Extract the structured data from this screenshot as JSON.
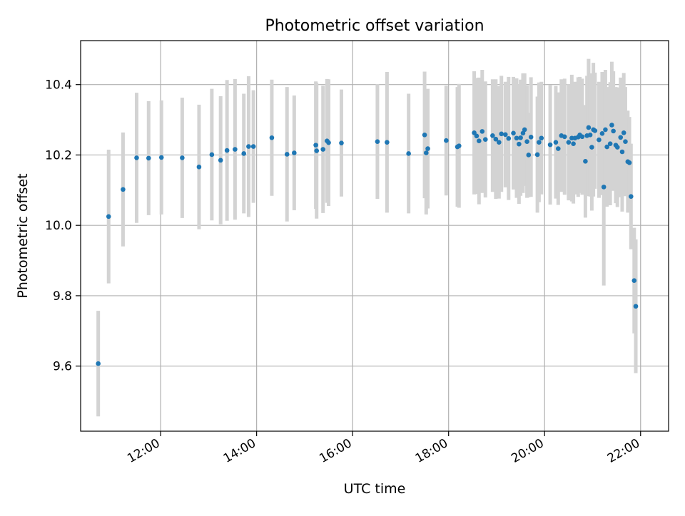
{
  "chart_data": {
    "type": "scatter",
    "title": "Photometric offset variation",
    "xlabel": "UTC time",
    "ylabel": "Photometric offset",
    "x_axis": {
      "kind": "time",
      "range": [
        "10:20",
        "22:35"
      ],
      "ticks": [
        "12:00",
        "14:00",
        "16:00",
        "18:00",
        "20:00",
        "22:00"
      ]
    },
    "y_axis": {
      "range": [
        9.415,
        10.525
      ],
      "ticks": [
        9.6,
        9.8,
        10.0,
        10.2,
        10.4
      ],
      "tick_labels": [
        "9.6",
        "9.8",
        "10.0",
        "10.2",
        "10.4"
      ]
    },
    "grid": true,
    "colors": {
      "point": "#1f77b4",
      "errorbar": "#d3d3d3",
      "grid": "#b0b0b0"
    },
    "series": [
      {
        "points": [
          [
            "10:42",
            9.607,
            0.15
          ],
          [
            "10:55",
            10.025,
            0.19
          ],
          [
            "11:13",
            10.102,
            0.162
          ],
          [
            "11:30",
            10.192,
            0.185
          ],
          [
            "11:45",
            10.191,
            0.162
          ],
          [
            "12:01",
            10.193,
            0.162
          ],
          [
            "12:27",
            10.192,
            0.171
          ],
          [
            "12:48",
            10.166,
            0.177
          ],
          [
            "13:04",
            10.201,
            0.187
          ],
          [
            "13:15",
            10.185,
            0.182
          ],
          [
            "13:23",
            10.213,
            0.2
          ],
          [
            "13:33",
            10.216,
            0.2
          ],
          [
            "13:44",
            10.204,
            0.17
          ],
          [
            "13:50",
            10.224,
            0.2
          ],
          [
            "13:56",
            10.224,
            0.16
          ],
          [
            "14:19",
            10.249,
            0.165
          ],
          [
            "14:38",
            10.202,
            0.191
          ],
          [
            "14:47",
            10.206,
            0.163
          ],
          [
            "15:14",
            10.228,
            0.181
          ],
          [
            "15:15",
            10.212,
            0.193
          ],
          [
            "15:23",
            10.216,
            0.181
          ],
          [
            "15:28",
            10.24,
            0.176
          ],
          [
            "15:30",
            10.235,
            0.18
          ],
          [
            "15:46",
            10.234,
            0.152
          ],
          [
            "16:31",
            10.238,
            0.163
          ],
          [
            "16:43",
            10.236,
            0.2
          ],
          [
            "17:10",
            10.204,
            0.17
          ],
          [
            "17:30",
            10.257,
            0.18
          ],
          [
            "17:32",
            10.206,
            0.175
          ],
          [
            "17:34",
            10.218,
            0.17
          ],
          [
            "17:57",
            10.241,
            0.156
          ],
          [
            "18:11",
            10.223,
            0.17
          ],
          [
            "18:13",
            10.226,
            0.176
          ],
          [
            "18:32",
            10.263,
            0.175
          ],
          [
            "18:35",
            10.254,
            0.165
          ],
          [
            "18:38",
            10.24,
            0.18
          ],
          [
            "18:42",
            10.267,
            0.175
          ],
          [
            "18:46",
            10.244,
            0.165
          ],
          [
            "18:55",
            10.255,
            0.16
          ],
          [
            "18:59",
            10.245,
            0.17
          ],
          [
            "19:03",
            10.236,
            0.16
          ],
          [
            "19:06",
            10.26,
            0.165
          ],
          [
            "19:11",
            10.258,
            0.15
          ],
          [
            "19:15",
            10.247,
            0.175
          ],
          [
            "19:21",
            10.262,
            0.16
          ],
          [
            "19:25",
            10.248,
            0.17
          ],
          [
            "19:28",
            10.231,
            0.17
          ],
          [
            "19:30",
            10.249,
            0.165
          ],
          [
            "19:33",
            10.262,
            0.17
          ],
          [
            "19:35",
            10.272,
            0.16
          ],
          [
            "19:38",
            10.238,
            0.16
          ],
          [
            "19:40",
            10.2,
            0.12
          ],
          [
            "19:43",
            10.251,
            0.17
          ],
          [
            "19:51",
            10.201,
            0.165
          ],
          [
            "19:53",
            10.236,
            0.17
          ],
          [
            "19:56",
            10.248,
            0.16
          ],
          [
            "20:07",
            10.229,
            0.17
          ],
          [
            "20:14",
            10.236,
            0.16
          ],
          [
            "20:17",
            10.218,
            0.16
          ],
          [
            "20:21",
            10.255,
            0.16
          ],
          [
            "20:25",
            10.252,
            0.165
          ],
          [
            "20:30",
            10.236,
            0.165
          ],
          [
            "20:34",
            10.248,
            0.18
          ],
          [
            "20:36",
            10.232,
            0.17
          ],
          [
            "20:38",
            10.248,
            0.16
          ],
          [
            "20:42",
            10.251,
            0.17
          ],
          [
            "20:44",
            10.257,
            0.165
          ],
          [
            "20:47",
            10.252,
            0.165
          ],
          [
            "20:51",
            10.182,
            0.16
          ],
          [
            "20:53",
            10.255,
            0.17
          ],
          [
            "20:55",
            10.278,
            0.195
          ],
          [
            "20:57",
            10.257,
            0.175
          ],
          [
            "20:59",
            10.222,
            0.18
          ],
          [
            "21:01",
            10.272,
            0.19
          ],
          [
            "21:03",
            10.269,
            0.165
          ],
          [
            "21:08",
            10.243,
            0.165
          ],
          [
            "21:12",
            10.261,
            0.175
          ],
          [
            "21:14",
            10.109,
            0.28
          ],
          [
            "21:16",
            10.272,
            0.17
          ],
          [
            "21:18",
            10.223,
            0.17
          ],
          [
            "21:22",
            10.232,
            0.175
          ],
          [
            "21:24",
            10.285,
            0.18
          ],
          [
            "21:26",
            10.268,
            0.17
          ],
          [
            "21:29",
            10.228,
            0.165
          ],
          [
            "21:31",
            10.222,
            0.17
          ],
          [
            "21:35",
            10.25,
            0.17
          ],
          [
            "21:37",
            10.209,
            0.17
          ],
          [
            "21:39",
            10.263,
            0.17
          ],
          [
            "21:41",
            10.238,
            0.155
          ],
          [
            "21:44",
            10.181,
            0.145
          ],
          [
            "21:46",
            10.178,
            0.13
          ],
          [
            "21:48",
            10.082,
            0.15
          ],
          [
            "21:52",
            9.843,
            0.15
          ],
          [
            "21:54",
            9.77,
            0.19
          ]
        ]
      }
    ]
  }
}
